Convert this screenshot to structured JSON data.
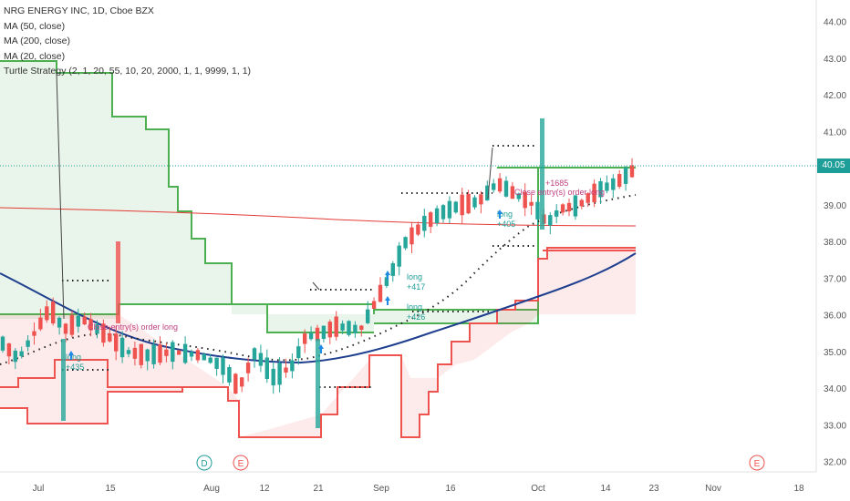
{
  "legend": {
    "symbol": "NRG ENERGY INC, 1D, Cboe BZX",
    "ma50": "MA (50, close)",
    "ma200": "MA (200, close)",
    "ma20": "MA (20, close)",
    "strategy": "Turtle Strategy (2, 1, 20, 55, 10, 20, 2000, 1, 1, 9999, 1, 1)"
  },
  "last_price": "40.05",
  "event_markers": [
    {
      "label": "D",
      "color": "#1e9e98",
      "x_date": "Aug 1"
    },
    {
      "label": "E",
      "color": "#ef5350",
      "x_date": "Aug 9"
    },
    {
      "label": "E",
      "color": "#ef5350",
      "x_date": "Nov 3"
    }
  ],
  "trade_labels": [
    {
      "text": "long",
      "sub": "+435"
    },
    {
      "text": "Close entry(s) order long",
      "sub": ""
    },
    {
      "text": "long",
      "sub": "+426"
    },
    {
      "text": "long",
      "sub": "+417"
    },
    {
      "text": "long",
      "sub": "+405"
    },
    {
      "text": "Close entry(s) order long",
      "sub": "+1685"
    }
  ],
  "colors": {
    "up": "#26a69a",
    "down": "#ef5350",
    "ma50": "#1f3f8f",
    "ma200": "#e53935",
    "ma20": "#000000",
    "upper_channel": "#4caf50",
    "lower_channel": "#ef5350",
    "price_line": "#1e9e98"
  },
  "chart_data": {
    "type": "candlestick",
    "yaxis": {
      "ticks": [
        "44.00",
        "43.00",
        "42.00",
        "41.00",
        "40.00",
        "39.00",
        "38.00",
        "37.00",
        "36.00",
        "35.00",
        "34.00",
        "33.00",
        "32.00"
      ],
      "range": [
        31.7,
        44.3
      ]
    },
    "xaxis": {
      "ticks": [
        "Jul",
        "15",
        "Aug",
        "12",
        "21",
        "Sep",
        "16",
        "Oct",
        "14",
        "23",
        "Nov",
        "18"
      ]
    },
    "ma200_start": 38.9,
    "ma200_end": 38.45,
    "ma50_start": 36.7,
    "ma50_end": 37.75,
    "last": 40.05
  }
}
